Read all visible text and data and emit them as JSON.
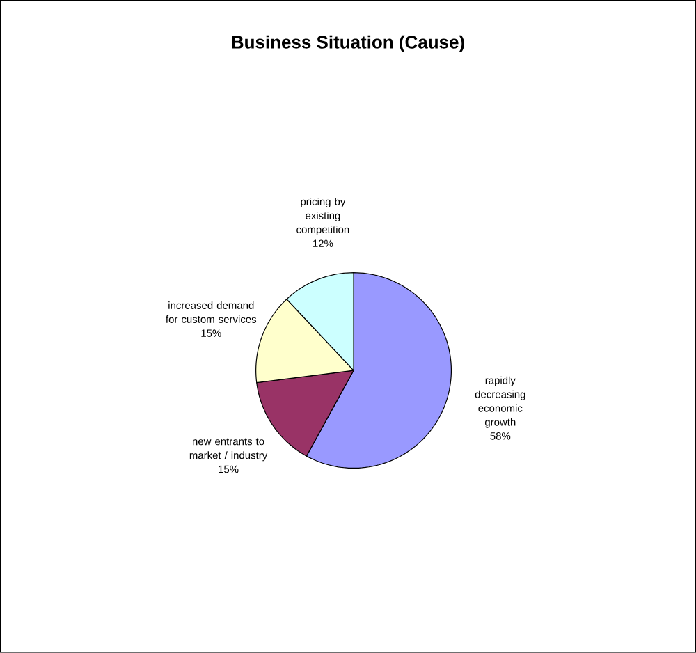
{
  "chart_data": {
    "type": "pie",
    "title": "Business Situation (Cause)",
    "categories": [
      "rapidly decreasing economic growth",
      "new entrants to market / industry",
      "increased demand for custom services",
      "pricing by existing competition"
    ],
    "values": [
      58,
      15,
      15,
      12
    ],
    "colors": [
      "#9999ff",
      "#993366",
      "#ffffcc",
      "#ccffff"
    ],
    "value_labels": [
      "58%",
      "15%",
      "15%",
      "12%"
    ]
  }
}
